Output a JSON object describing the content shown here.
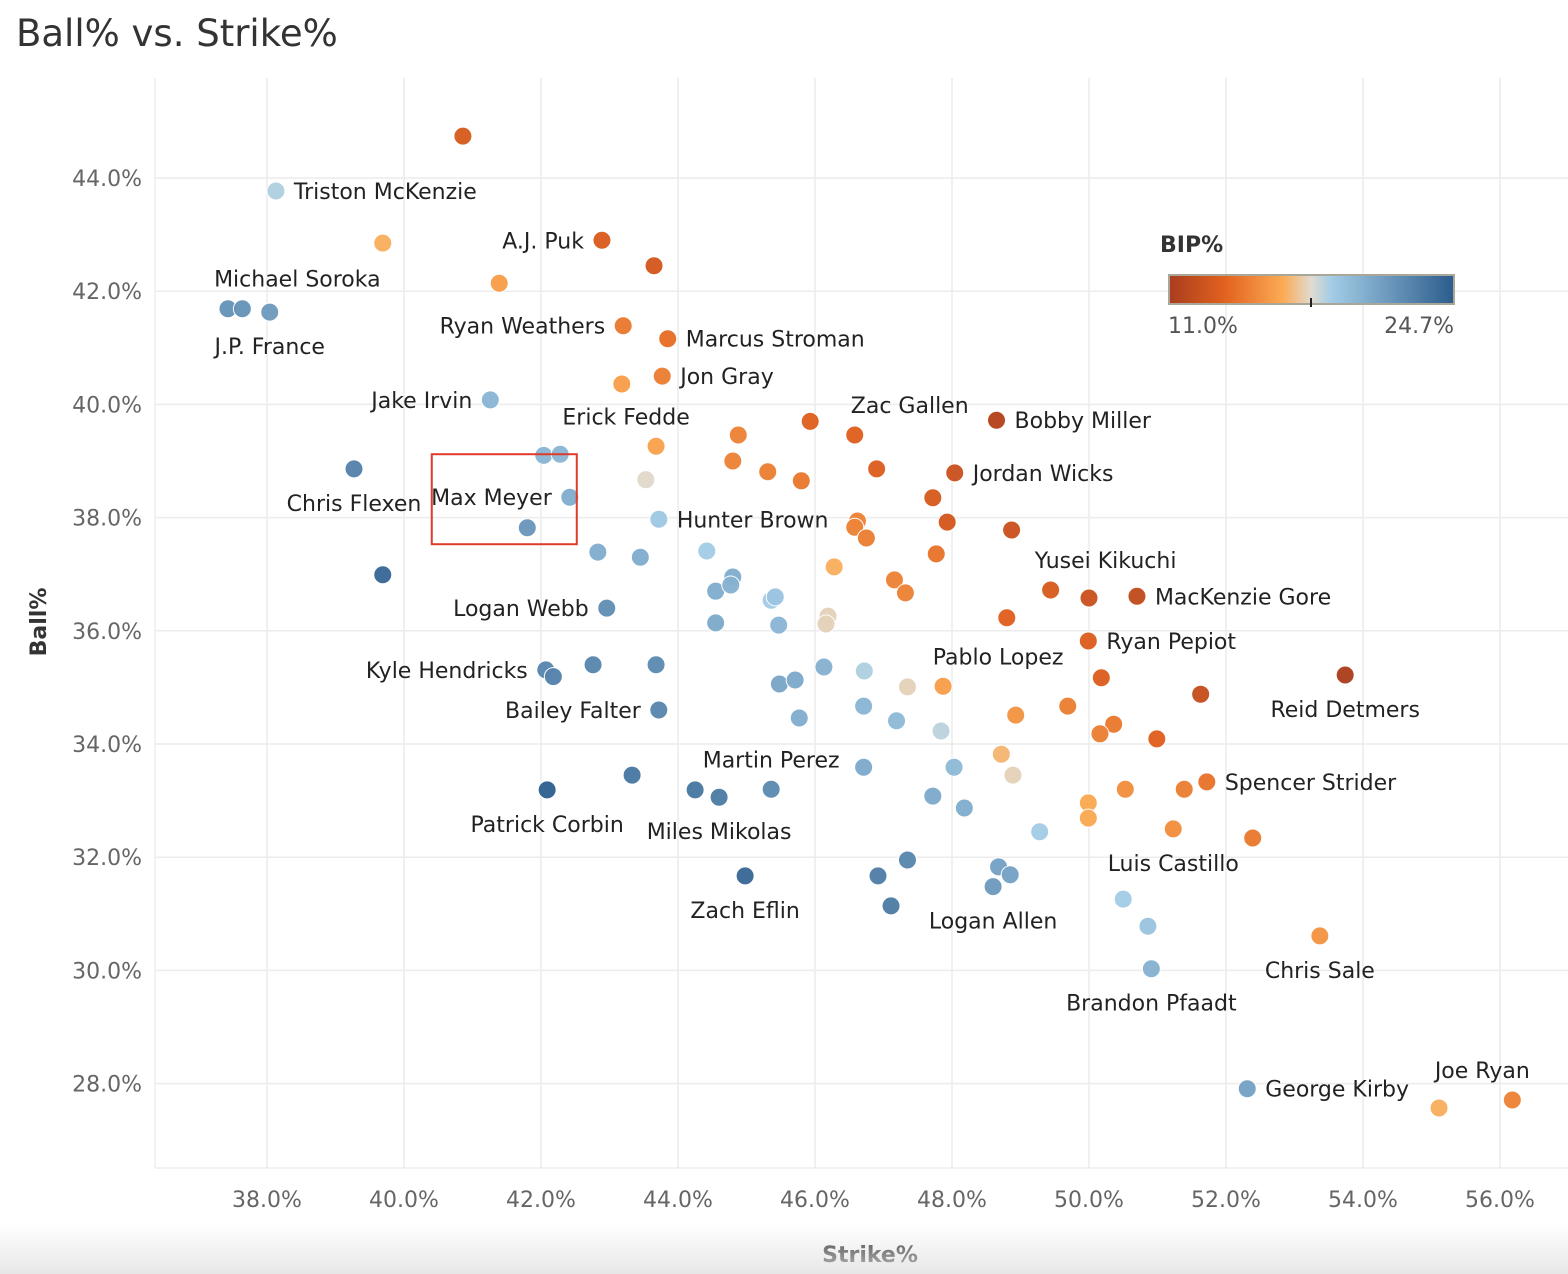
{
  "chart_data": {
    "type": "scatter",
    "title": "Ball% vs. Strike%",
    "xlabel": "Strike%",
    "ylabel": "Ball%",
    "xlim": [
      36.7,
      56.6
    ],
    "ylim": [
      27.0,
      45.8
    ],
    "xticks": [
      "38.0%",
      "40.0%",
      "42.0%",
      "44.0%",
      "46.0%",
      "48.0%",
      "50.0%",
      "52.0%",
      "54.0%",
      "56.0%"
    ],
    "xtick_values": [
      38,
      40,
      42,
      44,
      46,
      48,
      50,
      52,
      54,
      56
    ],
    "yticks": [
      "28.0%",
      "30.0%",
      "32.0%",
      "34.0%",
      "36.0%",
      "38.0%",
      "40.0%",
      "42.0%",
      "44.0%"
    ],
    "ytick_values": [
      28,
      30,
      32,
      34,
      36,
      38,
      40,
      42,
      44
    ],
    "grid": true,
    "legend": {
      "title": "BIP%",
      "min_label": "11.0%",
      "max_label": "24.7%",
      "min": 11.0,
      "max": 24.7,
      "placement": "top-right"
    },
    "color_scale": [
      "#a83d1e",
      "#e3631f",
      "#fbab55",
      "#e0dbd0",
      "#a3cde6",
      "#2c5c8c"
    ],
    "highlight": {
      "label": "Max Meyer",
      "color": "#e03a2a"
    },
    "points": [
      {
        "x": 40.86,
        "y": 44.74,
        "bip": 13.2
      },
      {
        "x": 38.13,
        "y": 43.77,
        "bip": 18.6,
        "label": "Triston McKenzie",
        "pos": "right"
      },
      {
        "x": 39.69,
        "y": 42.85,
        "bip": 16.6
      },
      {
        "x": 42.89,
        "y": 42.9,
        "bip": 13.3,
        "label": "A.J. Puk",
        "pos": "left"
      },
      {
        "x": 43.65,
        "y": 42.45,
        "bip": 13.0
      },
      {
        "x": 41.39,
        "y": 42.14,
        "bip": 16.0
      },
      {
        "x": 37.43,
        "y": 41.69,
        "bip": 21.8
      },
      {
        "x": 37.64,
        "y": 41.69,
        "bip": 21.8,
        "label": "Michael Soroka",
        "pos": "above-right"
      },
      {
        "x": 38.04,
        "y": 41.63,
        "bip": 21.4,
        "label": "J.P. France",
        "pos": "below"
      },
      {
        "x": 43.2,
        "y": 41.39,
        "bip": 14.6,
        "label": "Ryan Weathers",
        "pos": "left"
      },
      {
        "x": 43.85,
        "y": 41.16,
        "bip": 14.2,
        "label": "Marcus Stroman",
        "pos": "right"
      },
      {
        "x": 43.18,
        "y": 40.36,
        "bip": 16.0
      },
      {
        "x": 43.77,
        "y": 40.5,
        "bip": 14.8,
        "label": "Jon Gray",
        "pos": "right"
      },
      {
        "x": 41.26,
        "y": 40.08,
        "bip": 20.0,
        "label": "Jake Irvin",
        "pos": "left"
      },
      {
        "x": 42.04,
        "y": 39.1,
        "bip": 20.0
      },
      {
        "x": 42.28,
        "y": 39.12,
        "bip": 20.0
      },
      {
        "x": 43.68,
        "y": 39.26,
        "bip": 16.2,
        "label": "Erick Fedde",
        "pos": "above-left"
      },
      {
        "x": 44.88,
        "y": 39.46,
        "bip": 15.0
      },
      {
        "x": 45.93,
        "y": 39.7,
        "bip": 13.6
      },
      {
        "x": 46.58,
        "y": 39.46,
        "bip": 13.6,
        "label": "Zac Gallen",
        "pos": "above-right"
      },
      {
        "x": 48.65,
        "y": 39.72,
        "bip": 11.6,
        "label": "Bobby Miller",
        "pos": "right"
      },
      {
        "x": 39.27,
        "y": 38.86,
        "bip": 22.6,
        "label": "Chris Flexen",
        "pos": "below"
      },
      {
        "x": 42.42,
        "y": 38.36,
        "bip": 20.4,
        "label": "Max Meyer",
        "pos": "left"
      },
      {
        "x": 41.8,
        "y": 37.82,
        "bip": 21.6
      },
      {
        "x": 43.53,
        "y": 38.67,
        "bip": 17.8
      },
      {
        "x": 44.8,
        "y": 39.0,
        "bip": 15.0
      },
      {
        "x": 45.31,
        "y": 38.81,
        "bip": 14.8
      },
      {
        "x": 45.8,
        "y": 38.65,
        "bip": 14.6
      },
      {
        "x": 46.9,
        "y": 38.86,
        "bip": 13.4
      },
      {
        "x": 48.04,
        "y": 38.79,
        "bip": 12.6,
        "label": "Jordan Wicks",
        "pos": "right"
      },
      {
        "x": 47.72,
        "y": 38.35,
        "bip": 13.2
      },
      {
        "x": 47.93,
        "y": 37.92,
        "bip": 13.0
      },
      {
        "x": 48.87,
        "y": 37.78,
        "bip": 12.6
      },
      {
        "x": 43.72,
        "y": 37.97,
        "bip": 19.0,
        "label": "Hunter Brown",
        "pos": "right"
      },
      {
        "x": 46.62,
        "y": 37.94,
        "bip": 15.0
      },
      {
        "x": 46.58,
        "y": 37.83,
        "bip": 15.0
      },
      {
        "x": 46.75,
        "y": 37.64,
        "bip": 14.8
      },
      {
        "x": 42.83,
        "y": 37.39,
        "bip": 20.4
      },
      {
        "x": 43.45,
        "y": 37.3,
        "bip": 20.4
      },
      {
        "x": 44.42,
        "y": 37.41,
        "bip": 18.8
      },
      {
        "x": 39.69,
        "y": 36.99,
        "bip": 24.0
      },
      {
        "x": 44.8,
        "y": 36.95,
        "bip": 20.4
      },
      {
        "x": 46.28,
        "y": 37.13,
        "bip": 16.6
      },
      {
        "x": 47.77,
        "y": 37.36,
        "bip": 14.4
      },
      {
        "x": 47.16,
        "y": 36.9,
        "bip": 15.0
      },
      {
        "x": 47.32,
        "y": 36.67,
        "bip": 15.0
      },
      {
        "x": 44.55,
        "y": 36.7,
        "bip": 20.4
      },
      {
        "x": 44.77,
        "y": 36.81,
        "bip": 20.2
      },
      {
        "x": 45.36,
        "y": 36.54,
        "bip": 18.8
      },
      {
        "x": 45.42,
        "y": 36.6,
        "bip": 19.2
      },
      {
        "x": 49.44,
        "y": 36.72,
        "bip": 13.2,
        "label": "Yusei Kikuchi",
        "pos": "above-right"
      },
      {
        "x": 50.0,
        "y": 36.58,
        "bip": 12.6
      },
      {
        "x": 50.7,
        "y": 36.61,
        "bip": 12.2,
        "label": "MacKenzie Gore",
        "pos": "right"
      },
      {
        "x": 42.96,
        "y": 36.4,
        "bip": 22.0,
        "label": "Logan Webb",
        "pos": "left"
      },
      {
        "x": 46.19,
        "y": 36.26,
        "bip": 17.6
      },
      {
        "x": 46.16,
        "y": 36.12,
        "bip": 17.6
      },
      {
        "x": 44.55,
        "y": 36.14,
        "bip": 20.6
      },
      {
        "x": 45.47,
        "y": 36.1,
        "bip": 20.0
      },
      {
        "x": 48.8,
        "y": 36.23,
        "bip": 13.6
      },
      {
        "x": 49.99,
        "y": 35.82,
        "bip": 13.4,
        "label": "Ryan Pepiot",
        "pos": "right"
      },
      {
        "x": 42.07,
        "y": 35.31,
        "bip": 22.4,
        "label": "Kyle Hendricks",
        "pos": "left"
      },
      {
        "x": 42.18,
        "y": 35.19,
        "bip": 22.6
      },
      {
        "x": 42.76,
        "y": 35.4,
        "bip": 22.4
      },
      {
        "x": 43.68,
        "y": 35.4,
        "bip": 22.2
      },
      {
        "x": 45.48,
        "y": 35.06,
        "bip": 20.8
      },
      {
        "x": 45.71,
        "y": 35.13,
        "bip": 20.6
      },
      {
        "x": 46.13,
        "y": 35.36,
        "bip": 20.2
      },
      {
        "x": 46.72,
        "y": 35.29,
        "bip": 18.6
      },
      {
        "x": 47.35,
        "y": 35.01,
        "bip": 17.6
      },
      {
        "x": 47.87,
        "y": 35.02,
        "bip": 16.0,
        "label": "Pablo Lopez",
        "pos": "above-right"
      },
      {
        "x": 50.18,
        "y": 35.17,
        "bip": 13.4
      },
      {
        "x": 51.63,
        "y": 34.88,
        "bip": 12.4
      },
      {
        "x": 53.74,
        "y": 35.22,
        "bip": 11.2,
        "label": "Reid Detmers",
        "pos": "below"
      },
      {
        "x": 43.72,
        "y": 34.6,
        "bip": 22.4,
        "label": "Bailey Falter",
        "pos": "left"
      },
      {
        "x": 46.71,
        "y": 34.67,
        "bip": 20.0
      },
      {
        "x": 47.19,
        "y": 34.41,
        "bip": 19.8
      },
      {
        "x": 45.77,
        "y": 34.46,
        "bip": 20.4
      },
      {
        "x": 47.84,
        "y": 34.23,
        "bip": 18.4
      },
      {
        "x": 48.93,
        "y": 34.51,
        "bip": 15.6
      },
      {
        "x": 49.69,
        "y": 34.67,
        "bip": 14.8
      },
      {
        "x": 50.36,
        "y": 34.35,
        "bip": 14.6
      },
      {
        "x": 50.16,
        "y": 34.18,
        "bip": 14.8
      },
      {
        "x": 50.99,
        "y": 34.09,
        "bip": 13.6
      },
      {
        "x": 48.72,
        "y": 33.82,
        "bip": 16.8
      },
      {
        "x": 48.89,
        "y": 33.45,
        "bip": 17.6
      },
      {
        "x": 46.71,
        "y": 33.59,
        "bip": 20.6
      },
      {
        "x": 48.03,
        "y": 33.59,
        "bip": 19.8
      },
      {
        "x": 43.33,
        "y": 33.45,
        "bip": 23.2
      },
      {
        "x": 42.09,
        "y": 33.19,
        "bip": 24.4,
        "label": "Patrick Corbin",
        "pos": "below"
      },
      {
        "x": 44.25,
        "y": 33.19,
        "bip": 23.2
      },
      {
        "x": 44.6,
        "y": 33.06,
        "bip": 23.0,
        "label": "Miles Mikolas",
        "pos": "below"
      },
      {
        "x": 45.36,
        "y": 33.2,
        "bip": 22.2,
        "label": "Martin Perez",
        "pos": "above"
      },
      {
        "x": 47.72,
        "y": 33.08,
        "bip": 20.6
      },
      {
        "x": 48.18,
        "y": 32.87,
        "bip": 20.4
      },
      {
        "x": 49.99,
        "y": 32.96,
        "bip": 16.4
      },
      {
        "x": 49.99,
        "y": 32.69,
        "bip": 16.4
      },
      {
        "x": 50.53,
        "y": 33.2,
        "bip": 15.4
      },
      {
        "x": 51.39,
        "y": 33.2,
        "bip": 14.8
      },
      {
        "x": 51.72,
        "y": 33.33,
        "bip": 14.4,
        "label": "Spencer Strider",
        "pos": "right"
      },
      {
        "x": 49.28,
        "y": 32.45,
        "bip": 18.8
      },
      {
        "x": 51.23,
        "y": 32.5,
        "bip": 15.4,
        "label": "Luis Castillo",
        "pos": "below"
      },
      {
        "x": 52.39,
        "y": 32.34,
        "bip": 14.6
      },
      {
        "x": 47.35,
        "y": 31.95,
        "bip": 22.4
      },
      {
        "x": 44.98,
        "y": 31.67,
        "bip": 24.0,
        "label": "Zach Eflin",
        "pos": "below"
      },
      {
        "x": 46.92,
        "y": 31.67,
        "bip": 22.8
      },
      {
        "x": 47.11,
        "y": 31.14,
        "bip": 23.0
      },
      {
        "x": 48.68,
        "y": 31.83,
        "bip": 21.0
      },
      {
        "x": 48.85,
        "y": 31.69,
        "bip": 21.0
      },
      {
        "x": 48.6,
        "y": 31.48,
        "bip": 21.4,
        "label": "Logan Allen",
        "pos": "below"
      },
      {
        "x": 50.5,
        "y": 31.26,
        "bip": 18.8
      },
      {
        "x": 50.86,
        "y": 30.78,
        "bip": 19.2
      },
      {
        "x": 50.91,
        "y": 30.03,
        "bip": 20.2,
        "label": "Brandon Pfaadt",
        "pos": "below"
      },
      {
        "x": 53.37,
        "y": 30.61,
        "bip": 15.6,
        "label": "Chris Sale",
        "pos": "below"
      },
      {
        "x": 52.31,
        "y": 27.91,
        "bip": 21.0,
        "label": "George Kirby",
        "pos": "right"
      },
      {
        "x": 55.11,
        "y": 27.57,
        "bip": 16.6
      },
      {
        "x": 56.18,
        "y": 27.71,
        "bip": 15.0,
        "label": "Joe Ryan",
        "pos": "above-left"
      }
    ]
  }
}
